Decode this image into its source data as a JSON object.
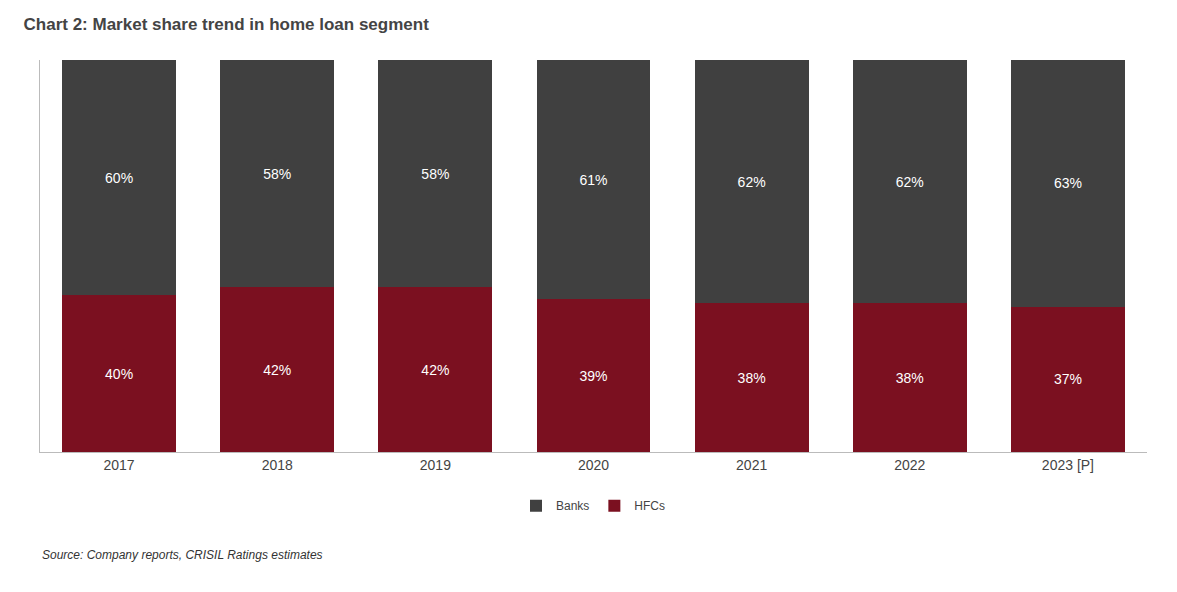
{
  "chart_data": {
    "type": "bar",
    "title": "Chart 2: Market share trend in home loan segment",
    "categories": [
      "2017",
      "2018",
      "2019",
      "2020",
      "2021",
      "2022",
      "2023 [P]"
    ],
    "series": [
      {
        "name": "HFCs",
        "color": "#7B1020",
        "values": [
          40,
          42,
          42,
          39,
          38,
          38,
          37
        ],
        "value_labels": [
          "40%",
          "42%",
          "42%",
          "39%",
          "38%",
          "38%",
          "37%"
        ]
      },
      {
        "name": "Banks",
        "color": "#404040",
        "values": [
          60,
          58,
          58,
          61,
          62,
          62,
          63
        ],
        "value_labels": [
          "60%",
          "58%",
          "58%",
          "61%",
          "62%",
          "62%",
          "63%"
        ]
      }
    ],
    "stacked": true,
    "data_labels": true,
    "ylim": [
      0,
      100
    ],
    "tick_labels": "x",
    "grid": false,
    "legend": "bottom",
    "annotations": [
      "Source: Company reports, CRISIL Ratings estimates"
    ]
  }
}
